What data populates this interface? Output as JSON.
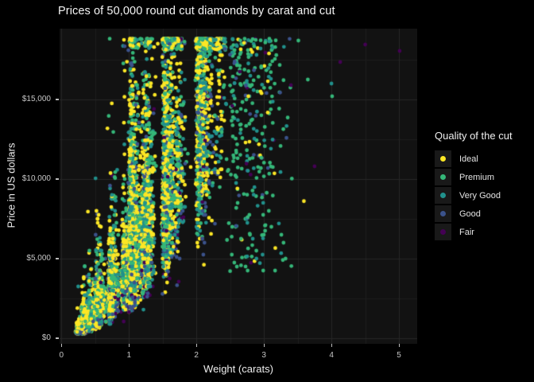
{
  "title": "Prices of 50,000 round cut diamonds by carat and cut",
  "legend": {
    "title": "Quality of the cut",
    "items": [
      {
        "label": "Ideal",
        "color": "#FDE725"
      },
      {
        "label": "Premium",
        "color": "#35B779"
      },
      {
        "label": "Very Good",
        "color": "#21918C"
      },
      {
        "label": "Good",
        "color": "#3B528B"
      },
      {
        "label": "Fair",
        "color": "#440154"
      }
    ]
  },
  "colors": {
    "background": "#000000",
    "panel": "#121212",
    "grid_major": "#262626",
    "grid_minor": "#1d1d1d",
    "title_text": "#f5f5f5",
    "tick_text": "#c6c6c6",
    "axis_title_text": "#ededed",
    "tick_mark": "#bdbdbd",
    "legend_key_bg": "#191919"
  },
  "chart_data": {
    "type": "scatter",
    "title": "Prices of 50,000 round cut diamonds by carat and cut",
    "xlabel": "Weight (carats)",
    "ylabel": "Price in US dollars",
    "legend_position": "right",
    "grid": "on",
    "axes": {
      "x_range": [
        -0.027,
        5.27
      ],
      "y_range": [
        -350,
        19450
      ],
      "x_ticks": [
        {
          "value": 0,
          "label": "0"
        },
        {
          "value": 1,
          "label": "1"
        },
        {
          "value": 2,
          "label": "2"
        },
        {
          "value": 3,
          "label": "3"
        },
        {
          "value": 4,
          "label": "4"
        },
        {
          "value": 5,
          "label": "5"
        }
      ],
      "y_ticks": [
        {
          "value": 0,
          "label": "$0"
        },
        {
          "value": 5000,
          "label": "$5,000"
        },
        {
          "value": 10000,
          "label": "$10,000"
        },
        {
          "value": 15000,
          "label": "$15,000"
        }
      ],
      "x_minor_step": 0.5,
      "y_minor_step": 2500
    },
    "series": [
      {
        "name": "Ideal",
        "color": "#FDE725",
        "share": 0.415
      },
      {
        "name": "Premium",
        "color": "#35B779",
        "share": 0.25
      },
      {
        "name": "Very Good",
        "color": "#21918C",
        "share": 0.22
      },
      {
        "name": "Good",
        "color": "#3B528B",
        "share": 0.085
      },
      {
        "name": "Fair",
        "color": "#440154",
        "share": 0.03
      }
    ],
    "gen": {
      "seed": 42,
      "n": 14000,
      "point_radius": 2.4,
      "clusters": [
        [
          0.23,
          0.012,
          0.02
        ],
        [
          0.3,
          0.035,
          0.1
        ],
        [
          0.32,
          0.018,
          0.045
        ],
        [
          0.4,
          0.025,
          0.055
        ],
        [
          0.5,
          0.04,
          0.085
        ],
        [
          0.53,
          0.022,
          0.03
        ],
        [
          0.7,
          0.04,
          0.09
        ],
        [
          0.72,
          0.028,
          0.03
        ],
        [
          0.9,
          0.035,
          0.032
        ],
        [
          1.0,
          0.06,
          0.105
        ],
        [
          1.01,
          0.022,
          0.05
        ],
        [
          1.2,
          0.055,
          0.045
        ],
        [
          1.25,
          0.028,
          0.015
        ],
        [
          1.5,
          0.07,
          0.055
        ],
        [
          1.52,
          0.03,
          0.02
        ],
        [
          1.7,
          0.05,
          0.012
        ],
        [
          2.0,
          0.09,
          0.032
        ],
        [
          2.01,
          0.04,
          0.014
        ],
        [
          2.3,
          0.06,
          0.006
        ],
        [
          2.5,
          0.15,
          0.009
        ],
        [
          2.75,
          0.2,
          0.005
        ],
        [
          3.0,
          0.15,
          0.003
        ]
      ],
      "cut_price_mult": {
        "Ideal": 1.0,
        "Premium": 1.03,
        "Very Good": 0.96,
        "Good": 0.85,
        "Fair": 0.7
      },
      "price_model": {
        "a": 8.37,
        "b": 1.6,
        "sigma": 0.3,
        "tail_mu": 0.55,
        "tail_sigma": 0.5,
        "tail_p_small": 0.08,
        "tail_p_large": 0.28,
        "tail_carat_threshold": 0.98,
        "price_cap": 18820,
        "price_min": 330,
        "gap": [
          1455,
          1545
        ],
        "big_carat": 2.45,
        "big_carat_spread": 0.78,
        "big_carat_pow": 1.6,
        "big_ideal_swap": 0.75
      },
      "outlier_points": [
        [
          2.95,
          18200,
          "Very Good"
        ],
        [
          3.02,
          18580,
          "Premium"
        ],
        [
          3.51,
          18700,
          "Premium"
        ],
        [
          3.4,
          15900,
          "Fair"
        ],
        [
          3.65,
          16250,
          "Premium"
        ],
        [
          3.75,
          10800,
          "Fair"
        ],
        [
          4.0,
          16000,
          "Very Good"
        ],
        [
          4.01,
          15200,
          "Premium"
        ],
        [
          4.13,
          17350,
          "Fair"
        ],
        [
          4.5,
          18450,
          "Fair"
        ],
        [
          5.01,
          18050,
          "Fair"
        ]
      ]
    }
  }
}
